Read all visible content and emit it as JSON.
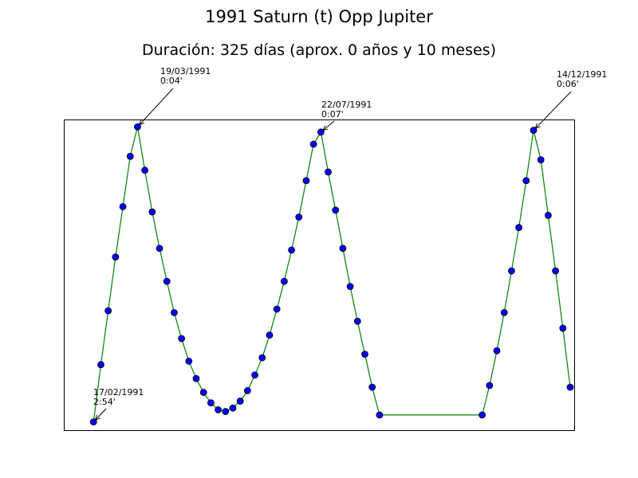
{
  "chart_data": {
    "type": "line",
    "title": "1991 Saturn (t) Opp Jupiter",
    "subtitle": "Duración: 325 días (aprox. 0 años y 10 meses)",
    "x": [
      0,
      5,
      10,
      15,
      20,
      25,
      30,
      35,
      40,
      45,
      50,
      55,
      60,
      65,
      70,
      75,
      80,
      85,
      90,
      95,
      100,
      105,
      110,
      115,
      120,
      125,
      130,
      135,
      140,
      145,
      150,
      155,
      160,
      165,
      170,
      175,
      180,
      185,
      190,
      195,
      265,
      270,
      275,
      280,
      285,
      290,
      295,
      300,
      305,
      310,
      315,
      320,
      325
    ],
    "series": [
      {
        "color": "#008000",
        "marker_color": "#0000ff",
        "values": [
          174,
          141,
          110,
          79,
          50,
          21,
          4,
          29,
          53,
          74,
          93,
          111,
          126,
          139,
          149,
          157,
          163,
          167,
          168,
          166,
          162,
          156,
          147,
          137,
          124,
          109,
          93,
          75,
          56,
          35,
          14,
          7,
          30,
          52,
          74,
          96,
          116,
          135,
          154,
          170,
          170,
          153,
          133,
          111,
          87,
          62,
          35,
          6,
          23,
          55,
          87,
          120,
          154
        ]
      }
    ],
    "xlim": [
      -20,
      328
    ],
    "ylim": [
      179,
      0
    ],
    "annotations": [
      {
        "date": "17/02/1991",
        "label": "2:54'"
      },
      {
        "date": "19/03/1991",
        "label": "0:04'"
      },
      {
        "date": "22/07/1991",
        "label": "0:07'"
      },
      {
        "date": "14/12/1991",
        "label": "0:06'"
      }
    ]
  }
}
